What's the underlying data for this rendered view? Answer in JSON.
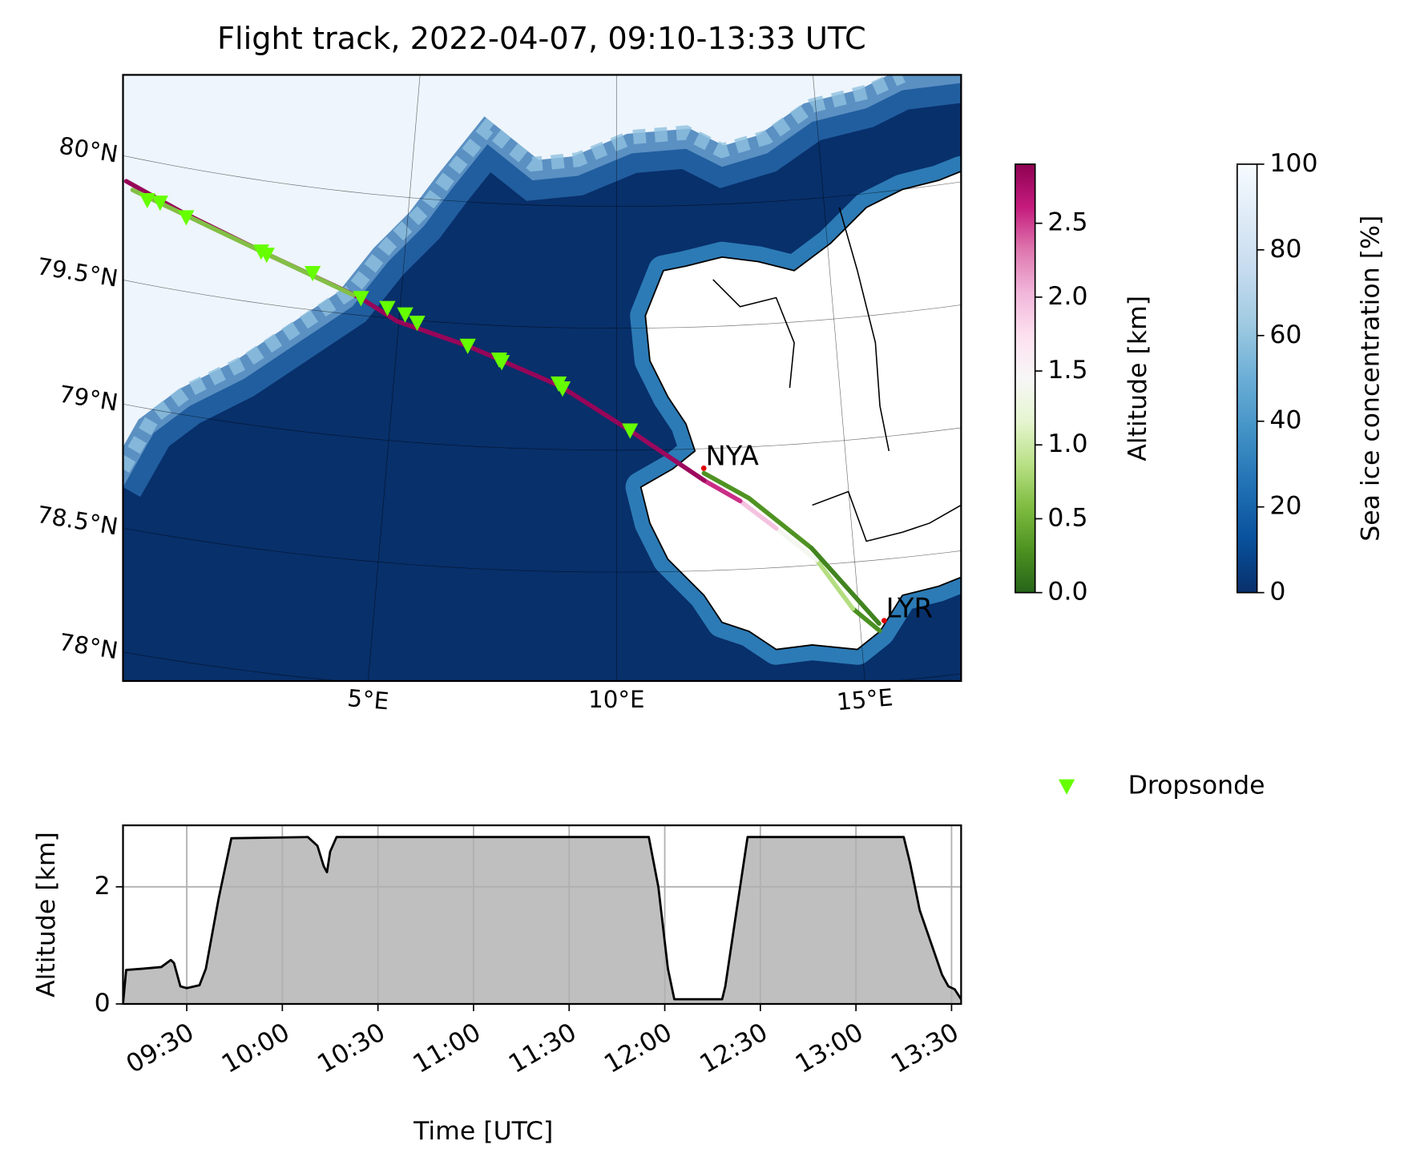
{
  "chart_data": [
    {
      "type": "map",
      "title": "Flight track, 2022-04-07, 09:10-13:33 UTC",
      "xticks": [
        {
          "value": 5,
          "label": "5°E"
        },
        {
          "value": 10,
          "label": "10°E"
        },
        {
          "value": 15,
          "label": "15°E"
        }
      ],
      "yticks": [
        {
          "value": 78,
          "label": "78°N"
        },
        {
          "value": 78.5,
          "label": "78.5°N"
        },
        {
          "value": 79,
          "label": "79°N"
        },
        {
          "value": 79.5,
          "label": "79.5°N"
        },
        {
          "value": 80,
          "label": "80°N"
        }
      ],
      "places": [
        {
          "name": "NYA",
          "x": 11.9,
          "y": 78.92
        },
        {
          "name": "LYR",
          "x": 15.5,
          "y": 78.25
        }
      ],
      "track": {
        "x": [
          15.39,
          14.88,
          14.21,
          13.4,
          12.66,
          11.9,
          10.3,
          8.74,
          6.61,
          4.96,
          4.08,
          3.43,
          1.85,
          -0.38,
          -1.79,
          null,
          -1.6,
          1.85,
          3.9,
          null,
          11.9,
          12.85,
          14.12,
          15.39
        ],
        "y": [
          78.21,
          78.31,
          78.52,
          78.66,
          78.78,
          78.87,
          79.08,
          79.26,
          79.41,
          79.49,
          79.57,
          79.61,
          79.7,
          79.82,
          79.9,
          null,
          79.87,
          79.7,
          79.58,
          null,
          78.9,
          78.79,
          78.57,
          78.24
        ],
        "values": [
          0.05,
          0.5,
          1.2,
          1.6,
          2.3,
          2.8,
          2.85,
          2.85,
          2.85,
          2.85,
          2.85,
          2.85,
          2.85,
          2.85,
          2.85,
          null,
          0.6,
          0.6,
          0.6,
          null,
          0.3,
          0.3,
          0.3,
          0.1
        ]
      },
      "series": [
        {
          "name": "Dropsonde",
          "color": "#66ff00",
          "x": [
            -1.21,
            -0.9,
            -0.23,
            1.64,
            1.78,
            2.9,
            4.08,
            4.71,
            5.13,
            5.42,
            6.61,
            7.34,
            7.4,
            8.7,
            8.79,
            10.3
          ],
          "y": [
            79.84,
            79.84,
            79.8,
            79.71,
            79.7,
            79.65,
            79.57,
            79.54,
            79.52,
            79.49,
            79.41,
            79.36,
            79.35,
            79.27,
            79.25,
            79.08
          ]
        }
      ],
      "colorbars": [
        {
          "label": "Altitude [km]",
          "lim": [
            0,
            2.9
          ],
          "ticks": [
            {
              "value": 0,
              "label": "0.0"
            },
            0.5,
            {
              "value": 1,
              "label": "1.0"
            },
            1.5,
            {
              "value": 2,
              "label": "2.0"
            },
            2.5
          ],
          "colormap": [
            "#276419",
            "#4d9221",
            "#7fbc41",
            "#b8e186",
            "#e6f5d0",
            "#f7f7f7",
            "#fde0ef",
            "#f1b6da",
            "#de77ae",
            "#c51b7d",
            "#8e0152"
          ]
        },
        {
          "label": "Sea ice concentration [%]",
          "lim": [
            0,
            100
          ],
          "ticks": [
            0,
            20,
            40,
            60,
            80,
            100
          ],
          "colormap": [
            "#08306b",
            "#08519c",
            "#2171b5",
            "#4292c6",
            "#6baed6",
            "#9ecae1",
            "#c6dbef",
            "#deebf7",
            "#f7fbff"
          ]
        }
      ]
    },
    {
      "type": "area",
      "xlabel": "Time [UTC]",
      "ylabel": "Altitude [km]",
      "x": [
        "09:10",
        "09:11",
        "09:16",
        "09:22",
        "09:25",
        "09:26",
        "09:28",
        "09:30",
        "09:34",
        "09:36",
        "09:40",
        "09:44",
        "10:08",
        "10:11",
        "10:13",
        "10:14",
        "10:15",
        "10:17",
        "11:55",
        "11:58",
        "12:01",
        "12:03",
        "12:18",
        "12:19",
        "12:22",
        "12:26",
        "13:15",
        "13:17",
        "13:20",
        "13:27",
        "13:29",
        "13:31",
        "13:33"
      ],
      "values": [
        0.0,
        0.58,
        0.6,
        0.63,
        0.75,
        0.7,
        0.3,
        0.27,
        0.32,
        0.6,
        1.8,
        2.83,
        2.85,
        2.7,
        2.35,
        2.25,
        2.6,
        2.85,
        2.85,
        2.0,
        0.6,
        0.08,
        0.08,
        0.3,
        1.4,
        2.85,
        2.85,
        2.4,
        1.6,
        0.5,
        0.3,
        0.25,
        0.08
      ],
      "xlim": [
        "09:10",
        "13:33"
      ],
      "xticks": [
        "09:30",
        "10:00",
        "10:30",
        "11:00",
        "11:30",
        "12:00",
        "12:30",
        "13:00",
        "13:30"
      ],
      "ylim": [
        0,
        3.05
      ],
      "yticks": [
        0,
        2
      ],
      "grid": true,
      "color": "#000000",
      "fill": "#bfbfbf"
    }
  ]
}
